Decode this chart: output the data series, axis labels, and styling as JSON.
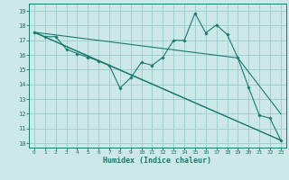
{
  "xlabel": "Humidex (Indice chaleur)",
  "xlim": [
    -0.5,
    23.5
  ],
  "ylim": [
    9.7,
    19.5
  ],
  "yticks": [
    10,
    11,
    12,
    13,
    14,
    15,
    16,
    17,
    18,
    19
  ],
  "xticks": [
    0,
    1,
    2,
    3,
    4,
    5,
    6,
    7,
    8,
    9,
    10,
    11,
    12,
    13,
    14,
    15,
    16,
    17,
    18,
    19,
    20,
    21,
    22,
    23
  ],
  "bg_color": "#cce8e8",
  "grid_color": "#99cccc",
  "line_color": "#1a7a6e",
  "main_line_x": [
    0,
    1,
    2,
    3,
    4,
    5,
    6,
    7,
    8,
    9,
    10,
    11,
    12,
    13,
    14,
    15,
    16,
    17,
    18,
    19,
    20,
    21,
    22,
    23
  ],
  "main_line_y": [
    17.55,
    17.25,
    17.25,
    16.4,
    16.1,
    15.85,
    15.6,
    15.3,
    13.75,
    14.45,
    15.5,
    15.3,
    15.85,
    17.0,
    17.0,
    18.85,
    17.5,
    18.05,
    17.4,
    15.8,
    13.8,
    11.9,
    11.7,
    10.2
  ],
  "ref_lines": [
    {
      "x": [
        0,
        23
      ],
      "y": [
        17.55,
        10.2
      ]
    },
    {
      "x": [
        0,
        19,
        23
      ],
      "y": [
        17.55,
        15.8,
        12.0
      ]
    },
    {
      "x": [
        0,
        6,
        23
      ],
      "y": [
        17.55,
        15.6,
        10.2
      ]
    }
  ]
}
